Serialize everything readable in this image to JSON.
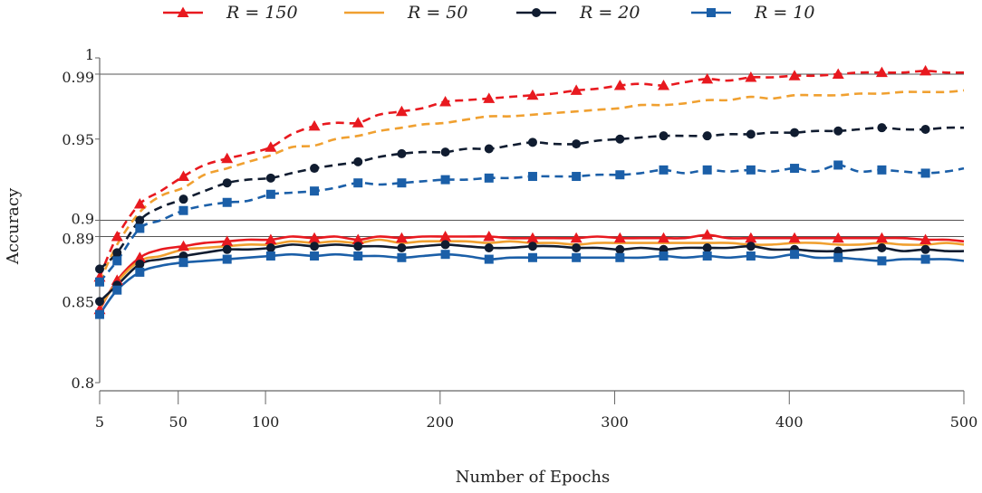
{
  "chart_data": {
    "type": "line",
    "xlabel": "Number of Epochs",
    "ylabel": "Accuracy",
    "xlim": [
      5,
      500
    ],
    "ylim": [
      0.8,
      1.0
    ],
    "xticks": [
      5,
      50,
      100,
      200,
      300,
      400,
      500
    ],
    "yticks": [
      0.8,
      0.85,
      0.89,
      0.9,
      0.95,
      0.99,
      1
    ],
    "ytick_labels": [
      "0.8",
      "0.85",
      "0.89",
      "0.9",
      "0.95",
      "0.99",
      "1"
    ],
    "reference_lines": [
      0.89,
      0.9,
      0.99
    ],
    "legend_position": "top",
    "legend": [
      "R = 150",
      "R = 50",
      "R = 20",
      "R = 10"
    ],
    "marker_x": [
      5,
      15,
      28,
      53,
      78,
      103,
      128,
      153,
      178,
      203,
      228,
      253,
      278,
      303,
      328,
      353,
      378,
      403,
      428,
      453,
      478
    ],
    "x": [
      5,
      15,
      28,
      40,
      53,
      65,
      78,
      90,
      103,
      115,
      128,
      140,
      153,
      165,
      178,
      190,
      203,
      215,
      228,
      240,
      253,
      265,
      278,
      290,
      303,
      315,
      328,
      340,
      353,
      365,
      378,
      390,
      403,
      415,
      428,
      440,
      453,
      465,
      478,
      490,
      500
    ],
    "series": [
      {
        "name": "R = 150 (dashed)",
        "color": "#e8191f",
        "style": "dashed",
        "marker": "triangle",
        "values": [
          0.865,
          0.89,
          0.91,
          0.918,
          0.927,
          0.934,
          0.938,
          0.941,
          0.945,
          0.953,
          0.958,
          0.96,
          0.96,
          0.965,
          0.967,
          0.969,
          0.973,
          0.974,
          0.975,
          0.976,
          0.977,
          0.978,
          0.98,
          0.981,
          0.983,
          0.984,
          0.983,
          0.985,
          0.987,
          0.986,
          0.988,
          0.988,
          0.989,
          0.989,
          0.99,
          0.991,
          0.991,
          0.991,
          0.992,
          0.991,
          0.991
        ]
      },
      {
        "name": "R = 50 (dashed)",
        "color": "#f0a030",
        "style": "dashed",
        "marker": "none",
        "values": [
          0.862,
          0.885,
          0.905,
          0.915,
          0.92,
          0.928,
          0.932,
          0.936,
          0.94,
          0.945,
          0.946,
          0.95,
          0.952,
          0.955,
          0.957,
          0.959,
          0.96,
          0.962,
          0.964,
          0.964,
          0.965,
          0.966,
          0.967,
          0.968,
          0.969,
          0.971,
          0.971,
          0.972,
          0.974,
          0.974,
          0.976,
          0.975,
          0.977,
          0.977,
          0.977,
          0.978,
          0.978,
          0.979,
          0.979,
          0.979,
          0.98
        ]
      },
      {
        "name": "R = 20 (dashed)",
        "color": "#101c30",
        "style": "dashed",
        "marker": "circle",
        "values": [
          0.87,
          0.88,
          0.9,
          0.908,
          0.913,
          0.918,
          0.923,
          0.925,
          0.926,
          0.929,
          0.932,
          0.934,
          0.936,
          0.939,
          0.941,
          0.942,
          0.942,
          0.944,
          0.944,
          0.946,
          0.948,
          0.947,
          0.947,
          0.949,
          0.95,
          0.951,
          0.952,
          0.952,
          0.952,
          0.953,
          0.953,
          0.954,
          0.954,
          0.955,
          0.955,
          0.956,
          0.957,
          0.956,
          0.956,
          0.957,
          0.957
        ]
      },
      {
        "name": "R = 10 (dashed)",
        "color": "#1b5fa8",
        "style": "dashed",
        "marker": "square",
        "values": [
          0.862,
          0.875,
          0.895,
          0.9,
          0.906,
          0.909,
          0.911,
          0.912,
          0.916,
          0.917,
          0.918,
          0.92,
          0.923,
          0.922,
          0.923,
          0.924,
          0.925,
          0.925,
          0.926,
          0.926,
          0.927,
          0.927,
          0.927,
          0.928,
          0.928,
          0.929,
          0.931,
          0.929,
          0.931,
          0.93,
          0.931,
          0.93,
          0.932,
          0.93,
          0.934,
          0.93,
          0.931,
          0.93,
          0.929,
          0.93,
          0.932
        ]
      },
      {
        "name": "R = 150 (solid)",
        "color": "#e8191f",
        "style": "solid",
        "marker": "triangle",
        "values": [
          0.845,
          0.863,
          0.877,
          0.882,
          0.884,
          0.886,
          0.887,
          0.888,
          0.888,
          0.89,
          0.889,
          0.89,
          0.888,
          0.89,
          0.889,
          0.89,
          0.89,
          0.89,
          0.89,
          0.889,
          0.889,
          0.889,
          0.889,
          0.89,
          0.889,
          0.889,
          0.889,
          0.889,
          0.891,
          0.889,
          0.889,
          0.889,
          0.889,
          0.889,
          0.889,
          0.889,
          0.889,
          0.889,
          0.888,
          0.888,
          0.887
        ]
      },
      {
        "name": "R = 50 (solid)",
        "color": "#f0a030",
        "style": "solid",
        "marker": "none",
        "values": [
          0.846,
          0.862,
          0.875,
          0.878,
          0.882,
          0.883,
          0.884,
          0.885,
          0.885,
          0.887,
          0.886,
          0.887,
          0.886,
          0.888,
          0.886,
          0.887,
          0.887,
          0.887,
          0.886,
          0.887,
          0.886,
          0.886,
          0.885,
          0.886,
          0.886,
          0.886,
          0.886,
          0.886,
          0.886,
          0.886,
          0.885,
          0.885,
          0.886,
          0.886,
          0.885,
          0.885,
          0.886,
          0.885,
          0.885,
          0.886,
          0.885
        ]
      },
      {
        "name": "R = 20 (solid)",
        "color": "#101c30",
        "style": "solid",
        "marker": "circle",
        "values": [
          0.85,
          0.86,
          0.873,
          0.876,
          0.878,
          0.88,
          0.882,
          0.882,
          0.883,
          0.885,
          0.884,
          0.885,
          0.884,
          0.884,
          0.883,
          0.884,
          0.885,
          0.884,
          0.883,
          0.883,
          0.884,
          0.884,
          0.883,
          0.883,
          0.882,
          0.883,
          0.882,
          0.883,
          0.883,
          0.883,
          0.884,
          0.882,
          0.882,
          0.881,
          0.881,
          0.882,
          0.883,
          0.881,
          0.882,
          0.881,
          0.881
        ]
      },
      {
        "name": "R = 10 (solid)",
        "color": "#1b5fa8",
        "style": "solid",
        "marker": "square",
        "values": [
          0.842,
          0.857,
          0.868,
          0.872,
          0.874,
          0.875,
          0.876,
          0.877,
          0.878,
          0.879,
          0.878,
          0.879,
          0.878,
          0.878,
          0.877,
          0.878,
          0.879,
          0.878,
          0.876,
          0.877,
          0.877,
          0.877,
          0.877,
          0.877,
          0.877,
          0.877,
          0.878,
          0.877,
          0.878,
          0.877,
          0.878,
          0.877,
          0.879,
          0.877,
          0.877,
          0.876,
          0.875,
          0.876,
          0.876,
          0.876,
          0.875
        ]
      }
    ]
  }
}
